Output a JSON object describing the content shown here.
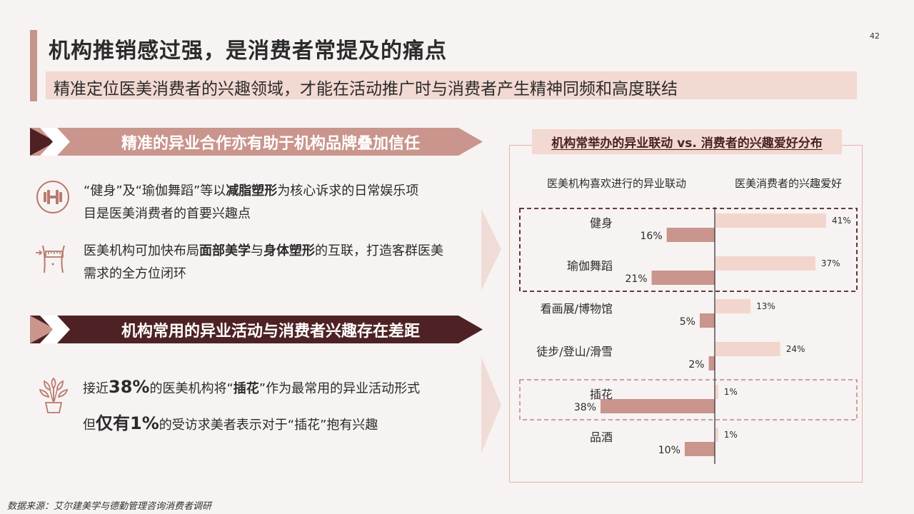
{
  "page": {
    "title": "机构推销感过强，是消费者常提及的痛点",
    "subtitle": "精准定位医美消费者的兴趣领域，才能在活动推广时与消费者产生精神同频和高度联结",
    "page_number": "42",
    "source": "数据来源：艾尔建美学与德勤管理咨询消费者调研"
  },
  "left": {
    "banner1": "精准的异业合作亦有助于机构品牌叠加信任",
    "item1": {
      "icon": "dumbbell-icon",
      "text_pre": "“健身”及“瑜伽舞蹈”等以",
      "text_bold": "减脂塑形",
      "text_post": "为核心诉求的日常娱乐项",
      "text_line2": "目是医美消费者的首要兴趣点"
    },
    "item2": {
      "icon": "body-measure-icon",
      "text_pre": "医美机构可加快布局",
      "text_bold1": "面部美学",
      "text_mid": "与",
      "text_bold2": "身体塑形",
      "text_post": "的互联，打造客群医美",
      "text_line2": "需求的全方位闭环"
    },
    "banner2": "机构常用的异业活动与消费者兴趣存在差距",
    "item3": {
      "icon": "flower-pot-icon",
      "line1_pre": "接近",
      "line1_pct": "38%",
      "line1_mid": "的医美机构将“",
      "line1_bold": "插花",
      "line1_post": "”作为最常用的异业活动形式",
      "line2_pre": "但",
      "line2_bold": "仅有1%",
      "line2_post": "的受访求美者表示对于“插花”抱有兴趣"
    }
  },
  "colors": {
    "accent_dark": "#4e2224",
    "accent_mid": "#c4958b",
    "bar_left": "#c9958c",
    "bar_right": "#f2d6cd"
  },
  "chart_data": {
    "type": "bar",
    "title": "机构常举办的异业联动 vs. 消费者的兴趣爱好分布",
    "left_header": "医美机构喜欢进行的异业联动",
    "right_header": "医美消费者的兴趣爱好",
    "categories": [
      "健身",
      "瑜伽舞蹈",
      "看画展/博物馆",
      "徒步/登山/滑雪",
      "插花",
      "品酒"
    ],
    "series": [
      {
        "name": "医美机构喜欢进行的异业联动",
        "values": [
          16,
          21,
          5,
          2,
          38,
          10
        ]
      },
      {
        "name": "医美消费者的兴趣爱好",
        "values": [
          41,
          37,
          13,
          24,
          1,
          1
        ]
      }
    ],
    "unit": "%",
    "highlight_groups": [
      [
        "健身",
        "瑜伽舞蹈"
      ],
      [
        "插花"
      ]
    ]
  }
}
